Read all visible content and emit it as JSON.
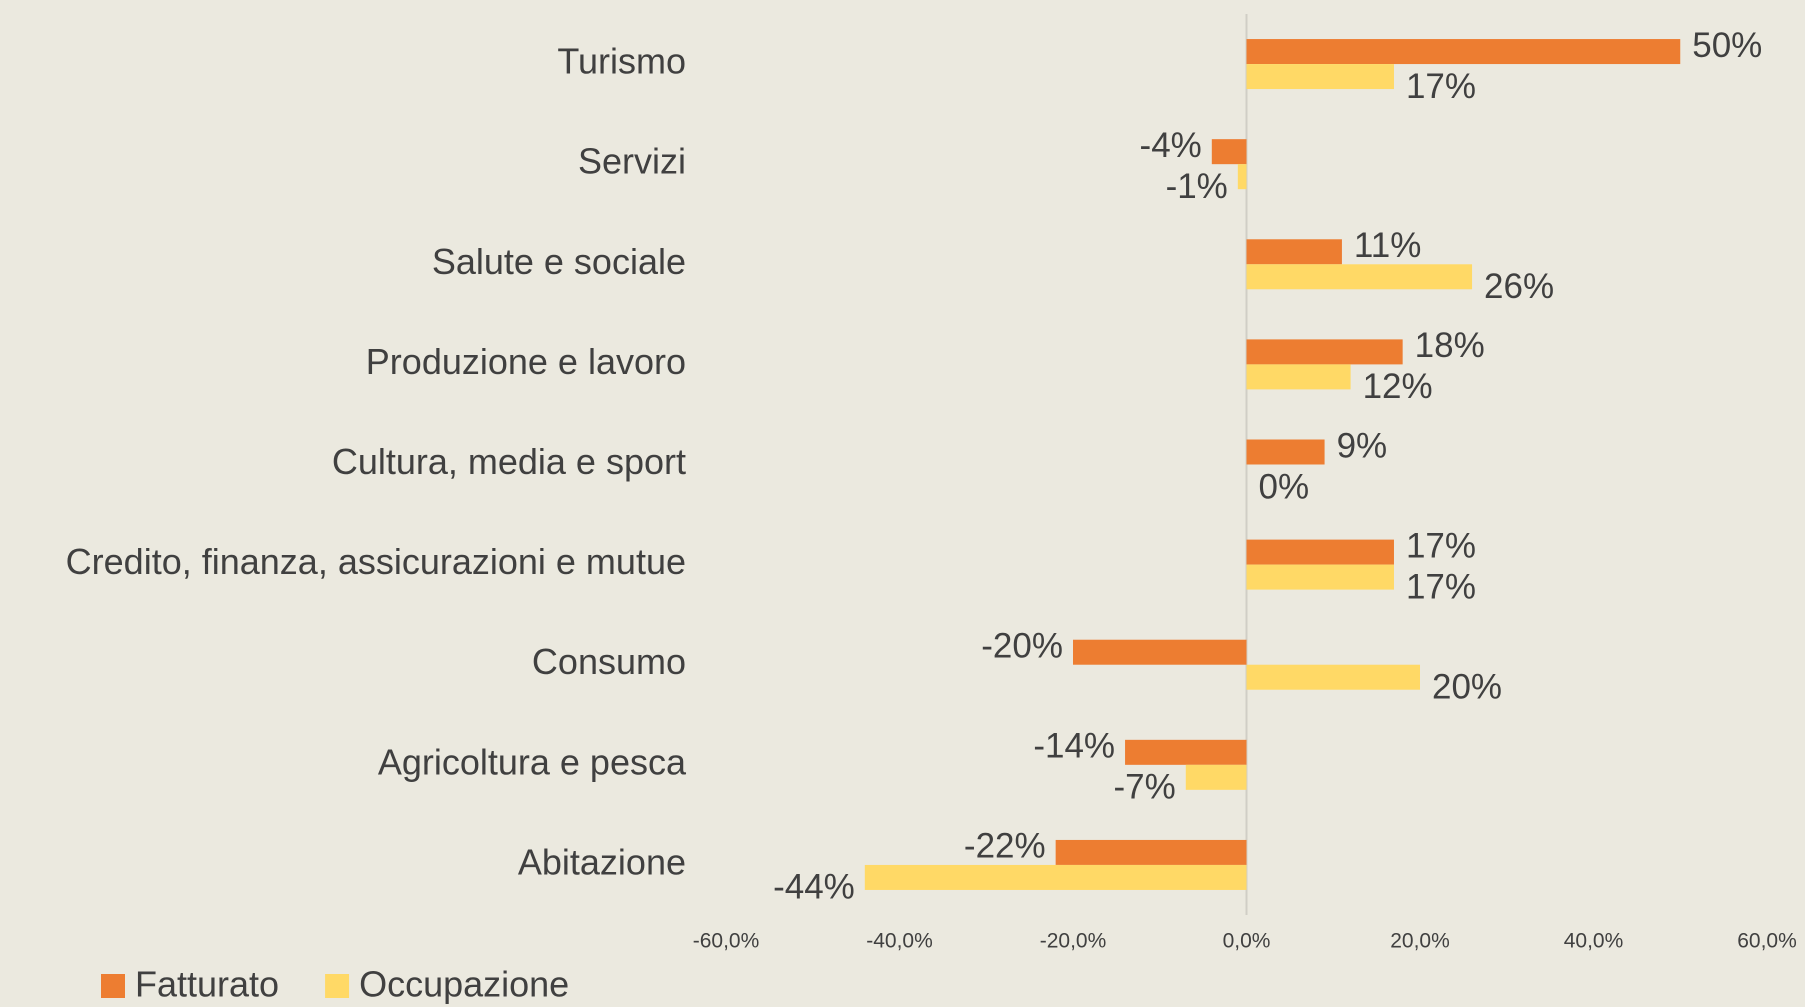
{
  "chart_data": {
    "type": "hbar",
    "categories": [
      "Turismo",
      "Servizi",
      "Salute e sociale",
      "Produzione e lavoro",
      "Cultura, media  e sport",
      "Credito, finanza, assicurazioni e mutue",
      "Consumo",
      "Agricoltura e pesca",
      "Abitazione"
    ],
    "series": [
      {
        "name": "Fatturato",
        "color": "#ed7d31",
        "values": [
          50,
          -4,
          11,
          18,
          9,
          17,
          -20,
          -14,
          -22
        ],
        "value_labels": [
          "50%",
          "-4%",
          "11%",
          "18%",
          "9%",
          "17%",
          "-20%",
          "-14%",
          "-22%"
        ]
      },
      {
        "name": "Occupazione",
        "color": "#ffd966",
        "values": [
          17,
          -1,
          26,
          12,
          0,
          17,
          20,
          -7,
          -44
        ],
        "value_labels": [
          "17%",
          "-1%",
          "26%",
          "12%",
          "0%",
          "17%",
          "20%",
          "-7%",
          "-44%"
        ]
      }
    ],
    "xlim": [
      -60,
      60
    ],
    "xticks": [
      {
        "value": -60,
        "label": "-60,0%"
      },
      {
        "value": -40,
        "label": "-40,0%"
      },
      {
        "value": -20,
        "label": "-20,0%"
      },
      {
        "value": 0,
        "label": "0,0%"
      },
      {
        "value": 20,
        "label": "20,0%"
      },
      {
        "value": 40,
        "label": "40,0%"
      },
      {
        "value": 60,
        "label": "60,0%"
      }
    ],
    "legend": "bottom-left"
  }
}
